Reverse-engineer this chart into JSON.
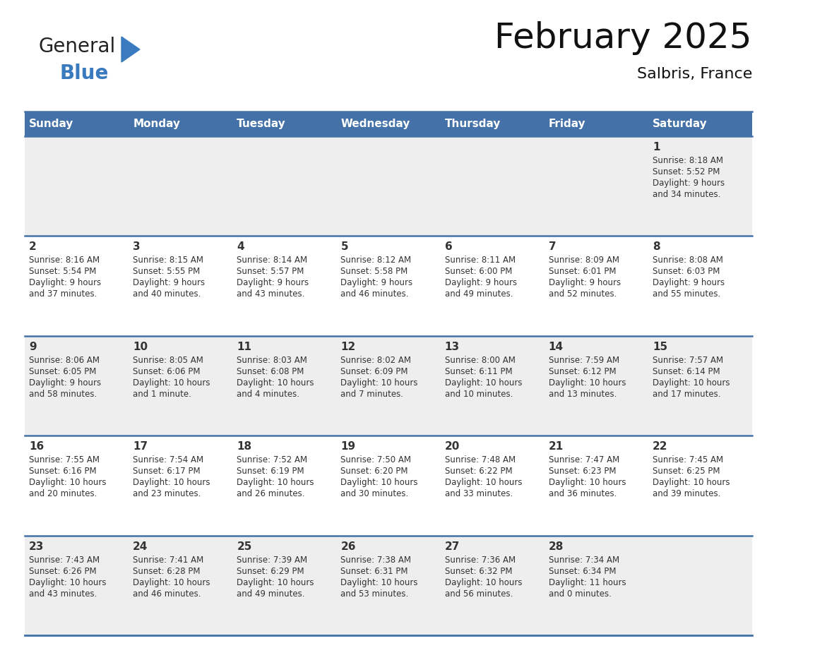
{
  "title": "February 2025",
  "subtitle": "Salbris, France",
  "header_bg": "#4472a8",
  "header_text_color": "#ffffff",
  "cell_bg_row0": "#eeeeee",
  "cell_bg_row1": "#ffffff",
  "cell_bg_row2": "#eeeeee",
  "cell_bg_row3": "#ffffff",
  "cell_bg_row4": "#eeeeee",
  "border_color": "#4472a8",
  "text_color": "#333333",
  "day_headers": [
    "Sunday",
    "Monday",
    "Tuesday",
    "Wednesday",
    "Thursday",
    "Friday",
    "Saturday"
  ],
  "days": [
    {
      "day": 1,
      "col": 6,
      "row": 0,
      "sunrise": "8:18 AM",
      "sunset": "5:52 PM",
      "daylight": "9 hours and 34 minutes."
    },
    {
      "day": 2,
      "col": 0,
      "row": 1,
      "sunrise": "8:16 AM",
      "sunset": "5:54 PM",
      "daylight": "9 hours and 37 minutes."
    },
    {
      "day": 3,
      "col": 1,
      "row": 1,
      "sunrise": "8:15 AM",
      "sunset": "5:55 PM",
      "daylight": "9 hours and 40 minutes."
    },
    {
      "day": 4,
      "col": 2,
      "row": 1,
      "sunrise": "8:14 AM",
      "sunset": "5:57 PM",
      "daylight": "9 hours and 43 minutes."
    },
    {
      "day": 5,
      "col": 3,
      "row": 1,
      "sunrise": "8:12 AM",
      "sunset": "5:58 PM",
      "daylight": "9 hours and 46 minutes."
    },
    {
      "day": 6,
      "col": 4,
      "row": 1,
      "sunrise": "8:11 AM",
      "sunset": "6:00 PM",
      "daylight": "9 hours and 49 minutes."
    },
    {
      "day": 7,
      "col": 5,
      "row": 1,
      "sunrise": "8:09 AM",
      "sunset": "6:01 PM",
      "daylight": "9 hours and 52 minutes."
    },
    {
      "day": 8,
      "col": 6,
      "row": 1,
      "sunrise": "8:08 AM",
      "sunset": "6:03 PM",
      "daylight": "9 hours and 55 minutes."
    },
    {
      "day": 9,
      "col": 0,
      "row": 2,
      "sunrise": "8:06 AM",
      "sunset": "6:05 PM",
      "daylight": "9 hours and 58 minutes."
    },
    {
      "day": 10,
      "col": 1,
      "row": 2,
      "sunrise": "8:05 AM",
      "sunset": "6:06 PM",
      "daylight": "10 hours and 1 minute."
    },
    {
      "day": 11,
      "col": 2,
      "row": 2,
      "sunrise": "8:03 AM",
      "sunset": "6:08 PM",
      "daylight": "10 hours and 4 minutes."
    },
    {
      "day": 12,
      "col": 3,
      "row": 2,
      "sunrise": "8:02 AM",
      "sunset": "6:09 PM",
      "daylight": "10 hours and 7 minutes."
    },
    {
      "day": 13,
      "col": 4,
      "row": 2,
      "sunrise": "8:00 AM",
      "sunset": "6:11 PM",
      "daylight": "10 hours and 10 minutes."
    },
    {
      "day": 14,
      "col": 5,
      "row": 2,
      "sunrise": "7:59 AM",
      "sunset": "6:12 PM",
      "daylight": "10 hours and 13 minutes."
    },
    {
      "day": 15,
      "col": 6,
      "row": 2,
      "sunrise": "7:57 AM",
      "sunset": "6:14 PM",
      "daylight": "10 hours and 17 minutes."
    },
    {
      "day": 16,
      "col": 0,
      "row": 3,
      "sunrise": "7:55 AM",
      "sunset": "6:16 PM",
      "daylight": "10 hours and 20 minutes."
    },
    {
      "day": 17,
      "col": 1,
      "row": 3,
      "sunrise": "7:54 AM",
      "sunset": "6:17 PM",
      "daylight": "10 hours and 23 minutes."
    },
    {
      "day": 18,
      "col": 2,
      "row": 3,
      "sunrise": "7:52 AM",
      "sunset": "6:19 PM",
      "daylight": "10 hours and 26 minutes."
    },
    {
      "day": 19,
      "col": 3,
      "row": 3,
      "sunrise": "7:50 AM",
      "sunset": "6:20 PM",
      "daylight": "10 hours and 30 minutes."
    },
    {
      "day": 20,
      "col": 4,
      "row": 3,
      "sunrise": "7:48 AM",
      "sunset": "6:22 PM",
      "daylight": "10 hours and 33 minutes."
    },
    {
      "day": 21,
      "col": 5,
      "row": 3,
      "sunrise": "7:47 AM",
      "sunset": "6:23 PM",
      "daylight": "10 hours and 36 minutes."
    },
    {
      "day": 22,
      "col": 6,
      "row": 3,
      "sunrise": "7:45 AM",
      "sunset": "6:25 PM",
      "daylight": "10 hours and 39 minutes."
    },
    {
      "day": 23,
      "col": 0,
      "row": 4,
      "sunrise": "7:43 AM",
      "sunset": "6:26 PM",
      "daylight": "10 hours and 43 minutes."
    },
    {
      "day": 24,
      "col": 1,
      "row": 4,
      "sunrise": "7:41 AM",
      "sunset": "6:28 PM",
      "daylight": "10 hours and 46 minutes."
    },
    {
      "day": 25,
      "col": 2,
      "row": 4,
      "sunrise": "7:39 AM",
      "sunset": "6:29 PM",
      "daylight": "10 hours and 49 minutes."
    },
    {
      "day": 26,
      "col": 3,
      "row": 4,
      "sunrise": "7:38 AM",
      "sunset": "6:31 PM",
      "daylight": "10 hours and 53 minutes."
    },
    {
      "day": 27,
      "col": 4,
      "row": 4,
      "sunrise": "7:36 AM",
      "sunset": "6:32 PM",
      "daylight": "10 hours and 56 minutes."
    },
    {
      "day": 28,
      "col": 5,
      "row": 4,
      "sunrise": "7:34 AM",
      "sunset": "6:34 PM",
      "daylight": "11 hours and 0 minutes."
    }
  ],
  "num_rows": 5,
  "logo_general_color": "#222222",
  "logo_blue_color": "#3a7abf",
  "logo_triangle_color": "#3a7abf",
  "fig_width": 11.88,
  "fig_height": 9.18,
  "dpi": 100
}
